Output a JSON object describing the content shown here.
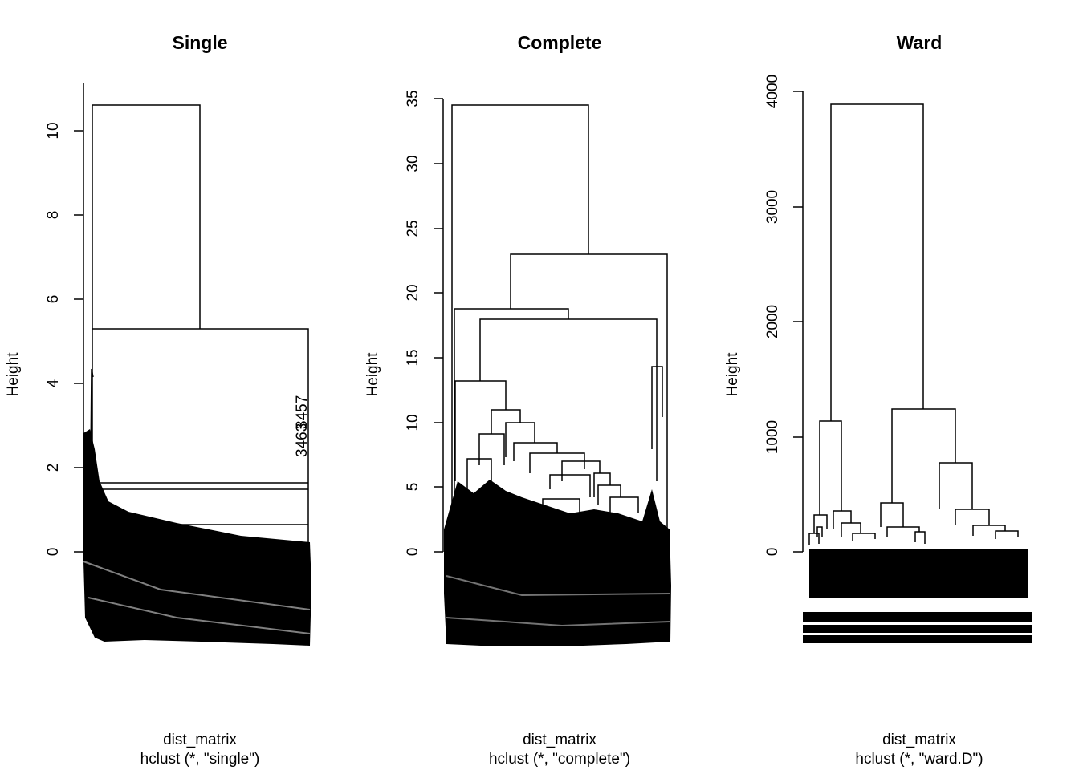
{
  "chart_data": [
    {
      "type": "dendrogram",
      "title": "Single",
      "ylabel": "Height",
      "xlabel": "dist_matrix",
      "sub": "hclust (*, \"single\")",
      "yticks": [
        0,
        2,
        4,
        6,
        8,
        10
      ],
      "ylim": [
        0,
        11
      ],
      "top_merges": [
        {
          "height": 10.6,
          "description": "root merge"
        },
        {
          "height": 5.3,
          "description": "second merge"
        },
        {
          "height": 1.6
        },
        {
          "height": 1.5
        },
        {
          "height": 0.65
        }
      ],
      "visible_leaf_labels": [
        "3457",
        "3463"
      ]
    },
    {
      "type": "dendrogram",
      "title": "Complete",
      "ylabel": "Height",
      "xlabel": "dist_matrix",
      "sub": "hclust (*, \"complete\")",
      "yticks": [
        0,
        5,
        10,
        15,
        20,
        25,
        30,
        35
      ],
      "ylim": [
        0,
        35
      ],
      "top_merges": [
        {
          "height": 34.5,
          "description": "root merge"
        },
        {
          "height": 23.0
        },
        {
          "height": 18.8
        },
        {
          "height": 18.0
        },
        {
          "height": 14.3
        },
        {
          "height": 13.2
        },
        {
          "height": 11.0
        },
        {
          "height": 10.0
        }
      ]
    },
    {
      "type": "dendrogram",
      "title": "Ward",
      "ylabel": "Height",
      "xlabel": "dist_matrix",
      "sub": "hclust (*, \"ward.D\")",
      "yticks": [
        0,
        1000,
        2000,
        3000,
        4000
      ],
      "ylim": [
        0,
        4000
      ],
      "top_merges": [
        {
          "height": 3870,
          "description": "root merge"
        },
        {
          "height": 1240
        },
        {
          "height": 1130
        },
        {
          "height": 780
        },
        {
          "height": 420
        },
        {
          "height": 370
        },
        {
          "height": 340
        },
        {
          "height": 310
        }
      ]
    }
  ]
}
